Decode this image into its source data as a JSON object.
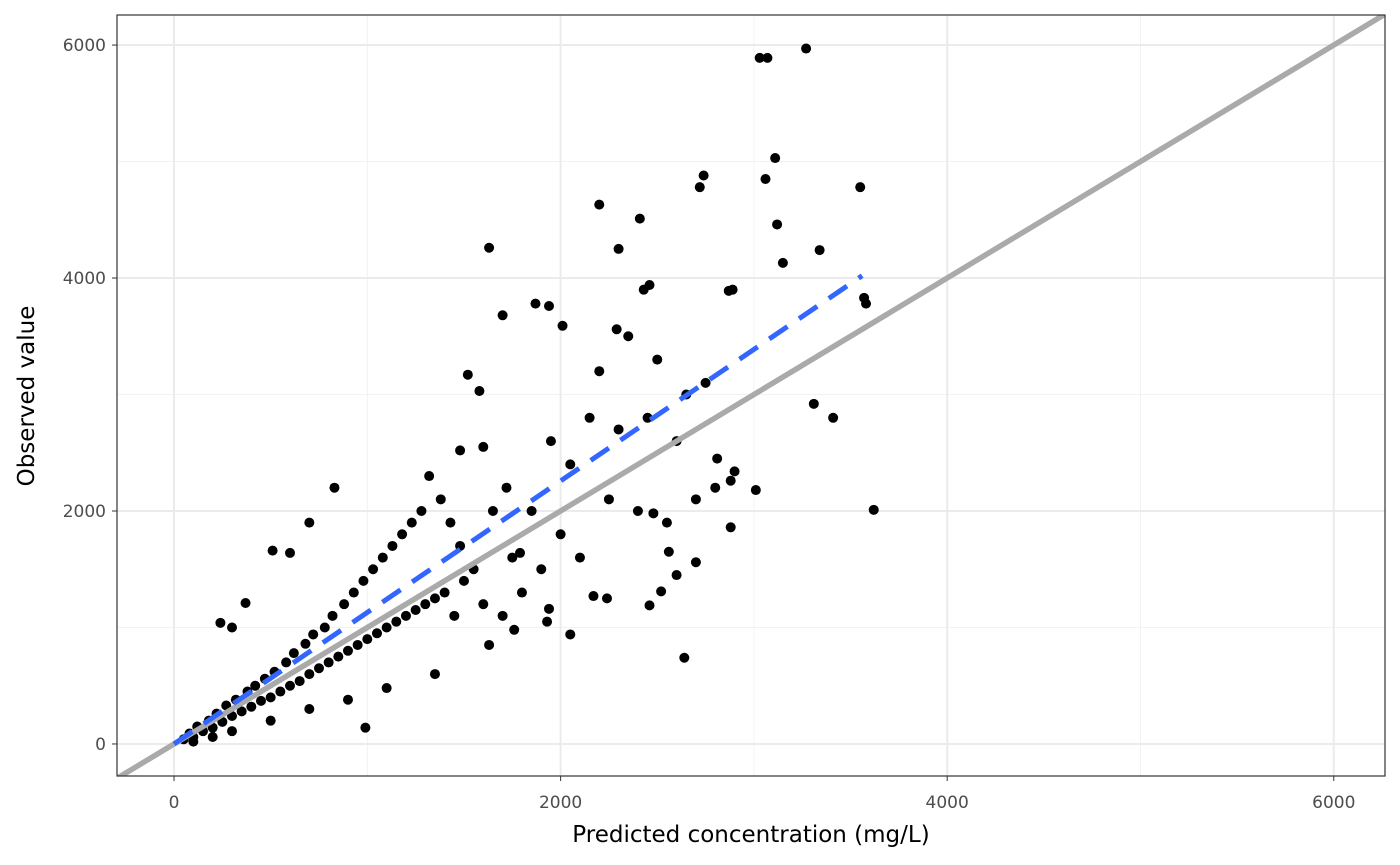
{
  "chart_data": {
    "type": "scatter",
    "x_label": "Predicted concentration (mg/L)",
    "y_label": "Observed value",
    "xlim": [
      -295,
      6265
    ],
    "ylim": [
      -275,
      6258
    ],
    "xticks": [
      0,
      2000,
      4000,
      6000
    ],
    "yticks": [
      0,
      2000,
      4000,
      6000
    ],
    "minor_xticks": [
      1000,
      3000,
      5000
    ],
    "minor_yticks": [
      1000,
      3000,
      5000
    ],
    "grid": true,
    "series": [
      {
        "type": "scatter",
        "color": "#000000",
        "x": [
          50,
          80,
          100,
          120,
          150,
          180,
          200,
          220,
          250,
          270,
          300,
          320,
          350,
          380,
          400,
          420,
          450,
          470,
          500,
          520,
          550,
          580,
          600,
          620,
          650,
          680,
          700,
          720,
          750,
          780,
          800,
          820,
          850,
          880,
          900,
          930,
          950,
          980,
          1000,
          1030,
          1050,
          1080,
          1100,
          1130,
          1150,
          1180,
          1200,
          1230,
          1250,
          1280,
          1300,
          1320,
          1350,
          1380,
          1400,
          1430,
          1450,
          1480,
          1500,
          1520,
          1550,
          1580,
          1600,
          1650,
          1700,
          1720,
          1750,
          1800,
          1850,
          1900,
          1950,
          2000,
          2050,
          2100,
          2150,
          2200,
          2250,
          2300,
          2350,
          2400,
          2450,
          2500,
          2550,
          2600,
          2650,
          2700,
          2750,
          2800,
          2600,
          2560,
          2480,
          240,
          830,
          700,
          600,
          510,
          370,
          300,
          1940,
          1930,
          1760,
          1630,
          1350,
          1100,
          900,
          700,
          500,
          300,
          200,
          100,
          2170,
          2240,
          2520,
          2700,
          2880,
          1790,
          1600,
          1480,
          3030,
          3070,
          3270,
          3110,
          3060,
          2740,
          2720,
          3550,
          2200,
          2410,
          3120,
          3340,
          2300,
          1630,
          3150,
          2430,
          2460,
          2870,
          2890,
          3570,
          3580,
          1870,
          1940,
          1700,
          2010,
          2290,
          3310,
          3410,
          3620,
          2640,
          990,
          3010,
          2900,
          2810,
          2460,
          2050,
          2880
        ],
        "values": [
          40,
          90,
          60,
          150,
          110,
          200,
          140,
          260,
          190,
          330,
          240,
          380,
          280,
          450,
          320,
          500,
          370,
          560,
          400,
          620,
          450,
          700,
          500,
          780,
          540,
          860,
          600,
          940,
          650,
          1000,
          700,
          1100,
          750,
          1200,
          800,
          1300,
          850,
          1400,
          900,
          1500,
          950,
          1600,
          1000,
          1700,
          1050,
          1800,
          1100,
          1900,
          1150,
          2000,
          1200,
          2300,
          1250,
          2100,
          1300,
          1900,
          1100,
          1700,
          1400,
          3170,
          1500,
          3030,
          1200,
          2000,
          1100,
          2200,
          1600,
          1300,
          2000,
          1500,
          2600,
          1800,
          2400,
          1600,
          2800,
          3200,
          2100,
          2700,
          3500,
          2000,
          2800,
          3300,
          1900,
          2600,
          3000,
          2100,
          3100,
          2200,
          1450,
          1650,
          1980,
          1040,
          2200,
          1900,
          1640,
          1660,
          1210,
          1000,
          1160,
          1050,
          980,
          850,
          600,
          480,
          380,
          300,
          200,
          110,
          60,
          20,
          1270,
          1250,
          1310,
          1560,
          2260,
          1640,
          2550,
          2520,
          5890,
          5890,
          5970,
          5030,
          4850,
          4880,
          4780,
          4780,
          4630,
          4510,
          4460,
          4240,
          4250,
          4260,
          4130,
          3900,
          3940,
          3890,
          3900,
          3830,
          3780,
          3780,
          3760,
          3680,
          3590,
          3560,
          2920,
          2800,
          2010,
          740,
          140,
          2180,
          2340,
          2450,
          1190,
          940,
          1860
        ]
      },
      {
        "type": "line",
        "color": "#aaaaaa",
        "dash": false,
        "x": [
          -300,
          6300
        ],
        "values": [
          -300,
          6300
        ]
      },
      {
        "type": "line",
        "color": "#3366ff",
        "dash": true,
        "x": [
          0,
          3560
        ],
        "values": [
          0,
          4020
        ]
      }
    ]
  }
}
